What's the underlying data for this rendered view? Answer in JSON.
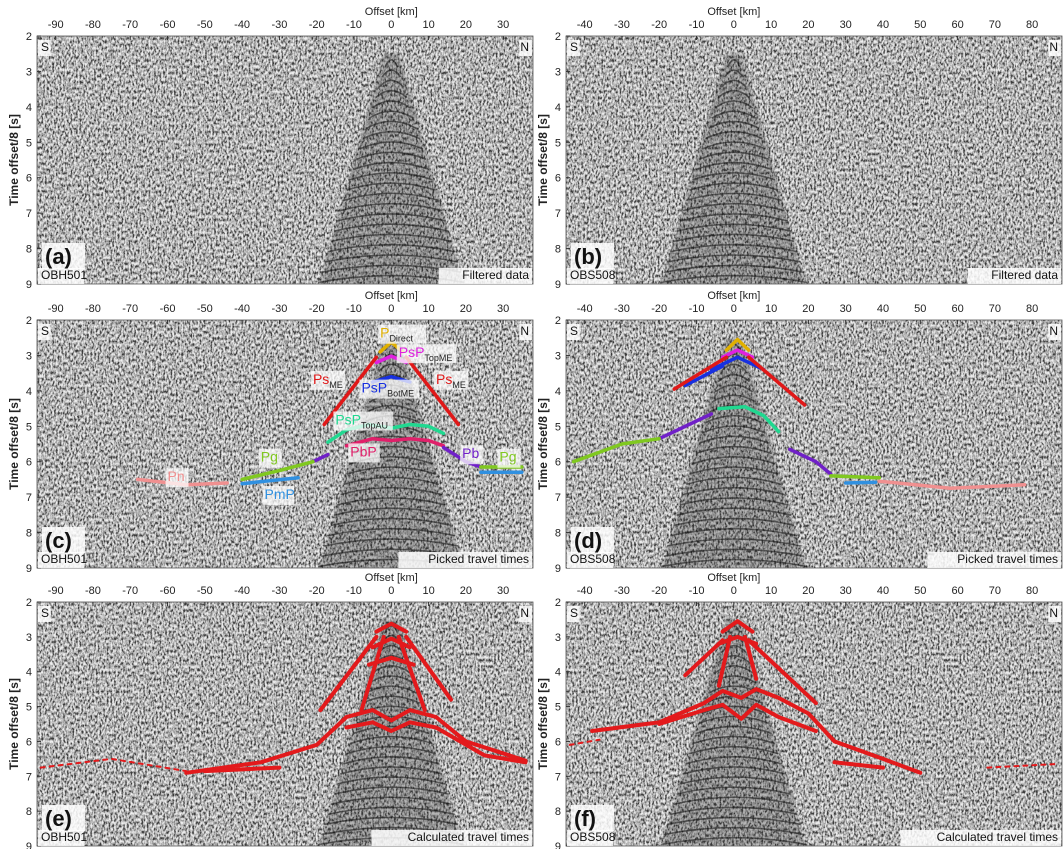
{
  "panels": [
    {
      "id": "a",
      "panel_label": "(a)",
      "station": "OBH501",
      "caption": "Filtered data",
      "xlabel": "Offset [km]",
      "ylabel": "Time offset/8 [s]",
      "x_ticks": [
        "-90",
        "-80",
        "-70",
        "-60",
        "-50",
        "-40",
        "-30",
        "-20",
        "-10",
        "0",
        "10",
        "20",
        "30"
      ],
      "y_ticks": [
        "2",
        "3",
        "4",
        "5",
        "6",
        "7",
        "8",
        "9"
      ],
      "left_dir": "S",
      "right_dir": "N",
      "xlim": [
        -95,
        38
      ],
      "ylim": [
        2,
        9
      ],
      "mode": "filtered",
      "phase_labels": []
    },
    {
      "id": "b",
      "panel_label": "(b)",
      "station": "OBS508",
      "caption": "Filtered data",
      "xlabel": "Offset [km]",
      "ylabel": "Time offset/8 [s]",
      "x_ticks": [
        "-40",
        "-30",
        "-20",
        "-10",
        "0",
        "10",
        "20",
        "30",
        "40",
        "50",
        "60",
        "70",
        "80"
      ],
      "y_ticks": [
        "2",
        "3",
        "4",
        "5",
        "6",
        "7",
        "8",
        "9"
      ],
      "left_dir": "S",
      "right_dir": "N",
      "xlim": [
        -45,
        88
      ],
      "ylim": [
        2,
        9
      ],
      "mode": "filtered",
      "phase_labels": []
    },
    {
      "id": "c",
      "panel_label": "(c)",
      "station": "OBH501",
      "caption": "Picked travel times",
      "xlabel": "Offset [km]",
      "ylabel": "Time offset/8 [s]",
      "x_ticks": [
        "-90",
        "-80",
        "-70",
        "-60",
        "-50",
        "-40",
        "-30",
        "-20",
        "-10",
        "0",
        "10",
        "20",
        "30"
      ],
      "y_ticks": [
        "2",
        "3",
        "4",
        "5",
        "6",
        "7",
        "8",
        "9"
      ],
      "left_dir": "S",
      "right_dir": "N",
      "xlim": [
        -95,
        38
      ],
      "ylim": [
        2,
        9
      ],
      "mode": "picked",
      "phase_labels": [
        {
          "text": "P",
          "sub": "Direct",
          "color": "#e0b000",
          "x": -3,
          "y": 2.5
        },
        {
          "text": "PsP",
          "sub": "TopME",
          "color": "#e020e0",
          "x": 2,
          "y": 3.05
        },
        {
          "text": "Ps",
          "sub": "ME",
          "color": "#e01818",
          "x": -21,
          "y": 3.8
        },
        {
          "text": "PsP",
          "sub": "BotME",
          "color": "#1830e0",
          "x": -8,
          "y": 4.05
        },
        {
          "text": "Ps",
          "sub": "ME",
          "color": "#e01818",
          "x": 12,
          "y": 3.8
        },
        {
          "text": "PsP",
          "sub": "TopAU",
          "color": "#20d890",
          "x": -15,
          "y": 4.95
        },
        {
          "text": "Pg",
          "sub": "",
          "color": "#80c820",
          "x": -35,
          "y": 6.0
        },
        {
          "text": "PbP",
          "sub": "",
          "color": "#e0206a",
          "x": -11,
          "y": 5.85
        },
        {
          "text": "Pb",
          "sub": "",
          "color": "#7020c8",
          "x": 19,
          "y": 5.9
        },
        {
          "text": "Pg",
          "sub": "",
          "color": "#80c820",
          "x": 29,
          "y": 6.0
        },
        {
          "text": "Pn",
          "sub": "",
          "color": "#f09090",
          "x": -60,
          "y": 6.55
        },
        {
          "text": "PmP",
          "sub": "",
          "color": "#3090e0",
          "x": -34,
          "y": 7.05
        }
      ]
    },
    {
      "id": "d",
      "panel_label": "(d)",
      "station": "OBS508",
      "caption": "Picked travel times",
      "xlabel": "Offset [km]",
      "ylabel": "Time offset/8 [s]",
      "x_ticks": [
        "-40",
        "-30",
        "-20",
        "-10",
        "0",
        "10",
        "20",
        "30",
        "40",
        "50",
        "60",
        "70",
        "80"
      ],
      "y_ticks": [
        "2",
        "3",
        "4",
        "5",
        "6",
        "7",
        "8",
        "9"
      ],
      "left_dir": "S",
      "right_dir": "N",
      "xlim": [
        -45,
        88
      ],
      "ylim": [
        2,
        9
      ],
      "mode": "picked",
      "phase_labels": []
    },
    {
      "id": "e",
      "panel_label": "(e)",
      "station": "OBH501",
      "caption": "Calculated travel times",
      "xlabel": "Offset [km]",
      "ylabel": "Time offset/8 [s]",
      "x_ticks": [
        "-90",
        "-80",
        "-70",
        "-60",
        "-50",
        "-40",
        "-30",
        "-20",
        "-10",
        "0",
        "10",
        "20",
        "30"
      ],
      "y_ticks": [
        "2",
        "3",
        "4",
        "5",
        "6",
        "7",
        "8",
        "9"
      ],
      "left_dir": "S",
      "right_dir": "N",
      "xlim": [
        -95,
        38
      ],
      "ylim": [
        2,
        9
      ],
      "mode": "calculated",
      "phase_labels": []
    },
    {
      "id": "f",
      "panel_label": "(f)",
      "station": "OBS508",
      "caption": "Calculated travel times",
      "xlabel": "Offset [km]",
      "ylabel": "Time offset/8 [s]",
      "x_ticks": [
        "-40",
        "-30",
        "-20",
        "-10",
        "0",
        "10",
        "20",
        "30",
        "40",
        "50",
        "60",
        "70",
        "80"
      ],
      "y_ticks": [
        "2",
        "3",
        "4",
        "5",
        "6",
        "7",
        "8",
        "9"
      ],
      "left_dir": "S",
      "right_dir": "N",
      "xlim": [
        -45,
        88
      ],
      "ylim": [
        2,
        9
      ],
      "mode": "calculated",
      "phase_labels": []
    }
  ],
  "picks": {
    "OBH501": [
      {
        "color": "#e0b000",
        "points": [
          [
            -3,
            2.9
          ],
          [
            0,
            2.62
          ],
          [
            3,
            2.9
          ]
        ]
      },
      {
        "color": "#e020e0",
        "points": [
          [
            -4,
            3.2
          ],
          [
            0,
            3.02
          ],
          [
            4,
            3.2
          ]
        ]
      },
      {
        "color": "#1830e0",
        "points": [
          [
            -5,
            3.75
          ],
          [
            0,
            3.6
          ],
          [
            5,
            3.75
          ]
        ]
      },
      {
        "color": "#e01818",
        "points": [
          [
            -4,
            3.05
          ],
          [
            -18,
            4.95
          ]
        ]
      },
      {
        "color": "#e01818",
        "points": [
          [
            4,
            3.05
          ],
          [
            18,
            4.95
          ]
        ]
      },
      {
        "color": "#20d890",
        "points": [
          [
            -17,
            5.45
          ],
          [
            -12,
            5.1
          ],
          [
            -6,
            4.95
          ],
          [
            0,
            5.05
          ],
          [
            5,
            4.95
          ],
          [
            10,
            5.0
          ],
          [
            14,
            5.2
          ]
        ]
      },
      {
        "color": "#e0206a",
        "points": [
          [
            -12,
            5.55
          ],
          [
            -5,
            5.35
          ],
          [
            0,
            5.4
          ],
          [
            5,
            5.35
          ],
          [
            10,
            5.4
          ],
          [
            14,
            5.55
          ]
        ]
      },
      {
        "color": "#7020c8",
        "points": [
          [
            -21,
            6.0
          ],
          [
            -17,
            5.8
          ]
        ]
      },
      {
        "color": "#7020c8",
        "points": [
          [
            14,
            5.6
          ],
          [
            20,
            6.0
          ],
          [
            24,
            6.15
          ]
        ]
      },
      {
        "color": "#80c820",
        "points": [
          [
            -40,
            6.5
          ],
          [
            -30,
            6.25
          ],
          [
            -21,
            6.0
          ]
        ]
      },
      {
        "color": "#80c820",
        "points": [
          [
            24,
            6.15
          ],
          [
            35,
            6.15
          ]
        ]
      },
      {
        "color": "#3090e0",
        "points": [
          [
            -40,
            6.62
          ],
          [
            -25,
            6.45
          ]
        ]
      },
      {
        "color": "#3090e0",
        "points": [
          [
            24,
            6.3
          ],
          [
            35,
            6.3
          ]
        ]
      },
      {
        "color": "#f09090",
        "points": [
          [
            -68,
            6.5
          ],
          [
            -55,
            6.65
          ],
          [
            -44,
            6.6
          ]
        ]
      }
    ],
    "OBS508": [
      {
        "color": "#e0b000",
        "points": [
          [
            -2,
            2.85
          ],
          [
            1,
            2.55
          ],
          [
            4,
            2.85
          ]
        ]
      },
      {
        "color": "#e020e0",
        "points": [
          [
            -3,
            3.05
          ],
          [
            1,
            2.85
          ],
          [
            5,
            3.05
          ]
        ]
      },
      {
        "color": "#1830e0",
        "points": [
          [
            -6,
            3.4
          ],
          [
            1,
            3.05
          ],
          [
            8,
            3.4
          ]
        ]
      },
      {
        "color": "#1830e0",
        "points": [
          [
            -13,
            3.85
          ],
          [
            -3,
            3.3
          ]
        ]
      },
      {
        "color": "#e01818",
        "points": [
          [
            -2,
            3.05
          ],
          [
            -16,
            3.95
          ]
        ]
      },
      {
        "color": "#e01818",
        "points": [
          [
            4,
            3.05
          ],
          [
            19,
            4.4
          ]
        ]
      },
      {
        "color": "#20d890",
        "points": [
          [
            -4,
            4.5
          ],
          [
            3,
            4.45
          ],
          [
            8,
            4.7
          ],
          [
            12,
            5.15
          ]
        ]
      },
      {
        "color": "#7020c8",
        "points": [
          [
            -20,
            5.35
          ],
          [
            -12,
            4.95
          ],
          [
            -6,
            4.65
          ]
        ]
      },
      {
        "color": "#80c820",
        "points": [
          [
            -43,
            6.0
          ],
          [
            -30,
            5.5
          ],
          [
            -20,
            5.35
          ]
        ]
      },
      {
        "color": "#7020c8",
        "points": [
          [
            15,
            5.65
          ],
          [
            22,
            6.0
          ],
          [
            26,
            6.35
          ]
        ]
      },
      {
        "color": "#80c820",
        "points": [
          [
            26,
            6.4
          ],
          [
            39,
            6.45
          ]
        ]
      },
      {
        "color": "#3090e0",
        "points": [
          [
            30,
            6.6
          ],
          [
            38,
            6.58
          ]
        ]
      },
      {
        "color": "#f09090",
        "points": [
          [
            39,
            6.55
          ],
          [
            58,
            6.75
          ],
          [
            78,
            6.65
          ]
        ]
      }
    ]
  },
  "calc": {
    "OBH501": [
      {
        "style": "solid",
        "points": [
          [
            -4,
            2.85
          ],
          [
            0,
            2.62
          ],
          [
            4,
            2.85
          ]
        ]
      },
      {
        "style": "solid",
        "points": [
          [
            -5,
            3.3
          ],
          [
            0,
            3.05
          ],
          [
            5,
            3.3
          ]
        ]
      },
      {
        "style": "solid",
        "points": [
          [
            -6,
            3.8
          ],
          [
            0,
            3.6
          ],
          [
            6,
            3.8
          ]
        ]
      },
      {
        "style": "solid",
        "points": [
          [
            -4,
            3.0
          ],
          [
            -19,
            5.1
          ]
        ]
      },
      {
        "style": "solid",
        "points": [
          [
            4,
            3.0
          ],
          [
            16,
            4.8
          ]
        ]
      },
      {
        "style": "solid",
        "points": [
          [
            -2,
            3.0
          ],
          [
            -8,
            5.1
          ]
        ]
      },
      {
        "style": "solid",
        "points": [
          [
            2,
            3.0
          ],
          [
            9,
            5.1
          ]
        ]
      },
      {
        "style": "solid",
        "points": [
          [
            -55,
            6.9
          ],
          [
            -35,
            6.6
          ],
          [
            -20,
            6.1
          ],
          [
            -12,
            5.3
          ],
          [
            -5,
            5.1
          ],
          [
            0,
            5.4
          ],
          [
            5,
            5.1
          ],
          [
            12,
            5.3
          ],
          [
            20,
            6.0
          ],
          [
            36,
            6.55
          ]
        ]
      },
      {
        "style": "solid",
        "points": [
          [
            -12,
            5.6
          ],
          [
            -5,
            5.45
          ],
          [
            0,
            5.7
          ],
          [
            5,
            5.45
          ],
          [
            12,
            5.6
          ],
          [
            25,
            6.4
          ],
          [
            36,
            6.6
          ]
        ]
      },
      {
        "style": "solid",
        "points": [
          [
            -50,
            6.85
          ],
          [
            -30,
            6.75
          ]
        ]
      },
      {
        "style": "dashed",
        "points": [
          [
            -94,
            6.75
          ],
          [
            -75,
            6.5
          ],
          [
            -55,
            6.85
          ]
        ]
      }
    ],
    "OBS508": [
      {
        "style": "solid",
        "points": [
          [
            -3,
            2.85
          ],
          [
            1,
            2.55
          ],
          [
            5,
            2.85
          ]
        ]
      },
      {
        "style": "solid",
        "points": [
          [
            -4,
            3.2
          ],
          [
            1,
            3.0
          ],
          [
            6,
            3.2
          ]
        ]
      },
      {
        "style": "solid",
        "points": [
          [
            -3,
            3.1
          ],
          [
            -13,
            4.1
          ]
        ]
      },
      {
        "style": "solid",
        "points": [
          [
            4,
            3.1
          ],
          [
            22,
            4.9
          ]
        ]
      },
      {
        "style": "solid",
        "points": [
          [
            -1,
            3.0
          ],
          [
            -4,
            4.4
          ]
        ]
      },
      {
        "style": "solid",
        "points": [
          [
            3,
            3.0
          ],
          [
            6,
            4.2
          ]
        ]
      },
      {
        "style": "solid",
        "points": [
          [
            -38,
            5.7
          ],
          [
            -20,
            5.45
          ],
          [
            -8,
            4.9
          ],
          [
            -3,
            4.55
          ],
          [
            2,
            4.75
          ],
          [
            6,
            4.5
          ],
          [
            12,
            4.75
          ],
          [
            20,
            5.2
          ],
          [
            27,
            6.0
          ],
          [
            40,
            6.5
          ],
          [
            50,
            6.9
          ]
        ]
      },
      {
        "style": "solid",
        "points": [
          [
            -20,
            5.5
          ],
          [
            -8,
            5.1
          ],
          [
            -3,
            4.95
          ],
          [
            2,
            5.35
          ],
          [
            6,
            4.95
          ],
          [
            12,
            5.3
          ],
          [
            22,
            5.7
          ]
        ]
      },
      {
        "style": "solid",
        "points": [
          [
            27,
            6.6
          ],
          [
            40,
            6.75
          ]
        ]
      },
      {
        "style": "dashed",
        "points": [
          [
            -44,
            6.1
          ],
          [
            -36,
            5.95
          ]
        ]
      },
      {
        "style": "dashed",
        "points": [
          [
            68,
            6.75
          ],
          [
            86,
            6.65
          ]
        ]
      }
    ]
  }
}
